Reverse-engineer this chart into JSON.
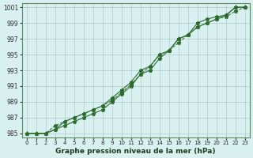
{
  "x": [
    0,
    1,
    2,
    3,
    4,
    5,
    6,
    7,
    8,
    9,
    10,
    11,
    12,
    13,
    14,
    15,
    16,
    17,
    18,
    19,
    20,
    21,
    22,
    23
  ],
  "line1": [
    985,
    985,
    985,
    985.5,
    986,
    986.5,
    987,
    987.5,
    988,
    989,
    990,
    991,
    992.5,
    993,
    994.5,
    995.5,
    997,
    997.5,
    999,
    999.5,
    999.8,
    1000,
    1001,
    1001
  ],
  "line2": [
    985,
    985,
    985,
    985.5,
    986.5,
    987,
    987.5,
    988,
    988.5,
    989.5,
    990.5,
    991.5,
    993,
    993.5,
    995,
    995.5,
    997,
    997.5,
    998.5,
    999,
    999.5,
    1000,
    1001,
    1001
  ],
  "line3": [
    985,
    985,
    985,
    986,
    986.5,
    987,
    987.5,
    988,
    988.5,
    989.2,
    990.2,
    991.2,
    992.5,
    993.5,
    995,
    995.5,
    996.5,
    997.5,
    998.5,
    999,
    999.5,
    999.8,
    1000.5,
    1001
  ],
  "ylim": [
    984.5,
    1001.5
  ],
  "xlim": [
    -0.5,
    23.5
  ],
  "yticks": [
    985,
    987,
    989,
    991,
    993,
    995,
    997,
    999,
    1001
  ],
  "xticks": [
    0,
    1,
    2,
    3,
    4,
    5,
    6,
    7,
    8,
    9,
    10,
    11,
    12,
    13,
    14,
    15,
    16,
    17,
    18,
    19,
    20,
    21,
    22,
    23
  ],
  "line_color": "#2d6b2d",
  "bg_color": "#d8f0f0",
  "grid_color": "#b0c8c8",
  "xlabel": "Graphe pression niveau de la mer (hPa)"
}
